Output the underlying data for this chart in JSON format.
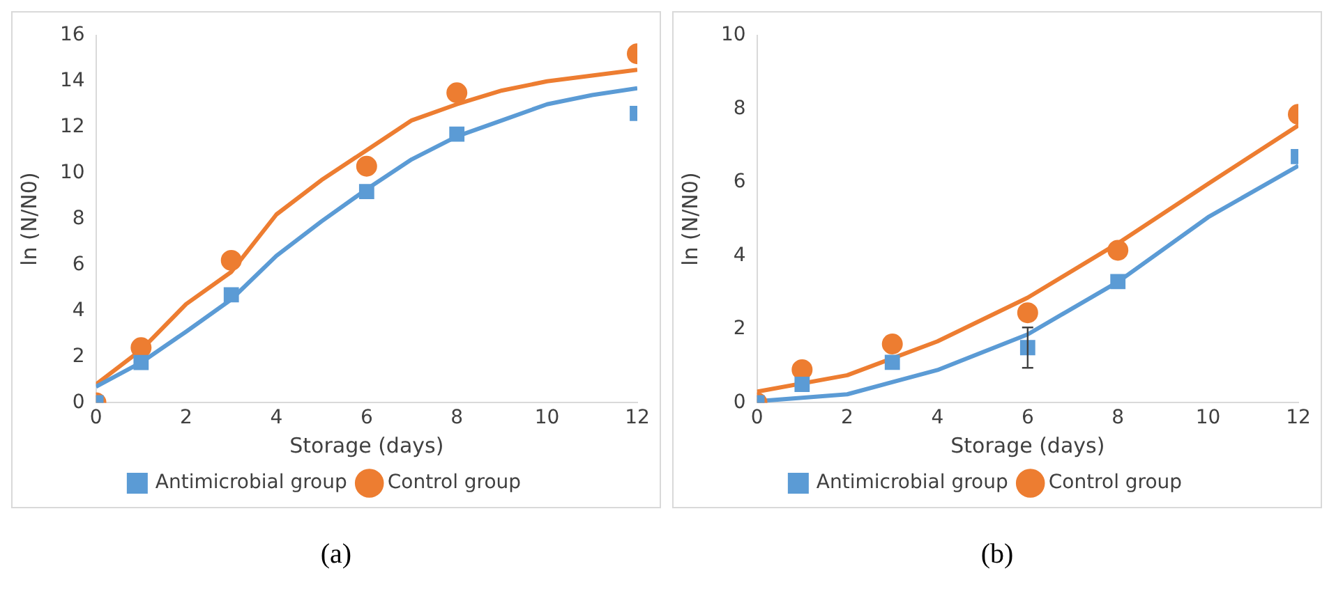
{
  "chart_data": [
    {
      "type": "scatter",
      "xlabel": "Storage (days)",
      "ylabel": "ln (N/N0)",
      "annotations": [
        "(a)"
      ],
      "xlim": [
        0,
        12
      ],
      "xticks": [
        0,
        2,
        4,
        6,
        8,
        10,
        12
      ],
      "ylim": [
        0,
        16
      ],
      "yticks": [
        0,
        2,
        4,
        6,
        8,
        10,
        12,
        14,
        16
      ],
      "grid": false,
      "legend": "bottom",
      "series": [
        {
          "name": "Antimicrobial group",
          "color": "#5b9bd5",
          "marker": "square",
          "x": [
            0,
            1,
            3,
            6,
            8,
            12
          ],
          "values": [
            0,
            1.75,
            4.7,
            9.2,
            11.7,
            12.6
          ]
        },
        {
          "name": "Control group",
          "color": "#ed7d31",
          "marker": "circle",
          "x": [
            0,
            1,
            3,
            6,
            8,
            12
          ],
          "values": [
            0,
            2.4,
            6.2,
            10.3,
            13.5,
            15.2
          ]
        },
        {
          "type": "line",
          "color": "#5b9bd5",
          "x": [
            0,
            1,
            2,
            3,
            4,
            5,
            6,
            7,
            8,
            9,
            10,
            11,
            12
          ],
          "values": [
            0.7,
            1.75,
            3.1,
            4.5,
            6.4,
            7.9,
            9.3,
            10.6,
            11.6,
            12.3,
            13,
            13.4,
            13.7
          ]
        },
        {
          "type": "line",
          "color": "#ed7d31",
          "x": [
            0,
            1,
            2,
            3,
            4,
            5,
            6,
            7,
            8,
            9,
            10,
            11,
            12
          ],
          "values": [
            0.8,
            2.3,
            4.3,
            5.7,
            8.2,
            9.7,
            11,
            12.3,
            13,
            13.6,
            14,
            14.25,
            14.5
          ]
        }
      ]
    },
    {
      "type": "scatter",
      "xlabel": "Storage (days)",
      "ylabel": "ln (N/N0)",
      "annotations": [
        "(b)"
      ],
      "xlim": [
        0,
        12
      ],
      "xticks": [
        0,
        2,
        4,
        6,
        8,
        10,
        12
      ],
      "ylim": [
        0,
        10
      ],
      "yticks": [
        0,
        2,
        4,
        6,
        8,
        10
      ],
      "grid": false,
      "legend": "bottom",
      "series": [
        {
          "name": "Antimicrobial group",
          "color": "#5b9bd5",
          "marker": "square",
          "x": [
            0,
            1,
            3,
            6,
            8,
            12
          ],
          "values": [
            0,
            0.5,
            1.1,
            1.5,
            3.3,
            6.7
          ],
          "errors": [
            null,
            null,
            null,
            0.55,
            null,
            null
          ]
        },
        {
          "name": "Control group",
          "color": "#ed7d31",
          "marker": "circle",
          "x": [
            0,
            1,
            3,
            6,
            8,
            12
          ],
          "values": [
            0,
            0.9,
            1.6,
            2.45,
            4.15,
            7.85
          ]
        },
        {
          "type": "line",
          "color": "#5b9bd5",
          "x": [
            0,
            2,
            4,
            6,
            8,
            10,
            12
          ],
          "values": [
            0.04,
            0.23,
            0.89,
            1.86,
            3.29,
            5.05,
            6.45
          ]
        },
        {
          "type": "line",
          "color": "#ed7d31",
          "x": [
            0,
            2,
            4,
            6,
            8,
            10,
            12
          ],
          "values": [
            0.3,
            0.75,
            1.67,
            2.86,
            4.34,
            5.96,
            7.55
          ]
        }
      ]
    }
  ]
}
